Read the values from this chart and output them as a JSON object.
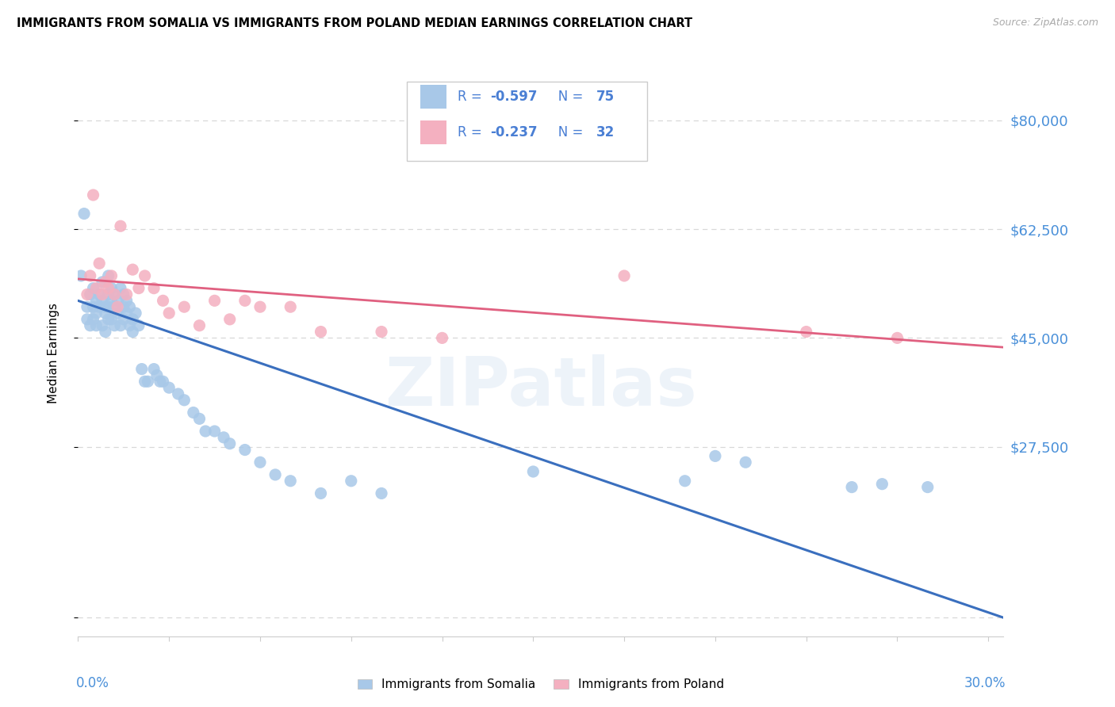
{
  "title": "IMMIGRANTS FROM SOMALIA VS IMMIGRANTS FROM POLAND MEDIAN EARNINGS CORRELATION CHART",
  "source": "Source: ZipAtlas.com",
  "ylabel": "Median Earnings",
  "y_ticks": [
    0,
    27500,
    45000,
    62500,
    80000
  ],
  "y_tick_labels": [
    "",
    "$27,500",
    "$45,000",
    "$62,500",
    "$80,000"
  ],
  "xlim": [
    0.0,
    0.305
  ],
  "ylim": [
    -3000,
    88000
  ],
  "somalia_color": "#a8c8e8",
  "poland_color": "#f4b0c0",
  "somalia_R": "-0.597",
  "somalia_N": "75",
  "poland_R": "-0.237",
  "poland_N": "32",
  "legend_text_color": "#4a7fd4",
  "watermark": "ZIPatlas",
  "somalia_scatter_x": [
    0.001,
    0.002,
    0.003,
    0.003,
    0.004,
    0.004,
    0.005,
    0.005,
    0.005,
    0.006,
    0.006,
    0.006,
    0.007,
    0.007,
    0.008,
    0.008,
    0.008,
    0.009,
    0.009,
    0.009,
    0.01,
    0.01,
    0.01,
    0.01,
    0.011,
    0.011,
    0.011,
    0.012,
    0.012,
    0.012,
    0.013,
    0.013,
    0.014,
    0.014,
    0.015,
    0.015,
    0.015,
    0.016,
    0.016,
    0.017,
    0.017,
    0.018,
    0.018,
    0.019,
    0.02,
    0.021,
    0.022,
    0.023,
    0.025,
    0.026,
    0.027,
    0.028,
    0.03,
    0.033,
    0.035,
    0.038,
    0.04,
    0.042,
    0.045,
    0.048,
    0.05,
    0.055,
    0.06,
    0.065,
    0.07,
    0.08,
    0.09,
    0.1,
    0.15,
    0.2,
    0.21,
    0.22,
    0.255,
    0.265,
    0.28
  ],
  "somalia_scatter_y": [
    55000,
    65000,
    50000,
    48000,
    52000,
    47000,
    53000,
    50000,
    48000,
    51000,
    49000,
    47000,
    52000,
    50000,
    54000,
    51000,
    47000,
    50000,
    49000,
    46000,
    55000,
    52000,
    50000,
    48000,
    53000,
    51000,
    48000,
    52000,
    50000,
    47000,
    51000,
    49000,
    53000,
    47000,
    52000,
    50000,
    48000,
    51000,
    49000,
    50000,
    47000,
    48000,
    46000,
    49000,
    47000,
    40000,
    38000,
    38000,
    40000,
    39000,
    38000,
    38000,
    37000,
    36000,
    35000,
    33000,
    32000,
    30000,
    30000,
    29000,
    28000,
    27000,
    25000,
    23000,
    22000,
    20000,
    22000,
    20000,
    23500,
    22000,
    26000,
    25000,
    21000,
    21500,
    21000
  ],
  "poland_scatter_x": [
    0.003,
    0.004,
    0.005,
    0.006,
    0.007,
    0.008,
    0.009,
    0.01,
    0.011,
    0.012,
    0.013,
    0.014,
    0.016,
    0.018,
    0.02,
    0.022,
    0.025,
    0.028,
    0.03,
    0.035,
    0.04,
    0.045,
    0.05,
    0.055,
    0.06,
    0.07,
    0.08,
    0.1,
    0.12,
    0.18,
    0.24,
    0.27
  ],
  "poland_scatter_y": [
    52000,
    55000,
    68000,
    53000,
    57000,
    52000,
    54000,
    53000,
    55000,
    52000,
    50000,
    63000,
    52000,
    56000,
    53000,
    55000,
    53000,
    51000,
    49000,
    50000,
    47000,
    51000,
    48000,
    51000,
    50000,
    50000,
    46000,
    46000,
    45000,
    55000,
    46000,
    45000
  ],
  "somalia_trend_x0": 0.0,
  "somalia_trend_x1": 0.305,
  "somalia_trend_y0": 51000,
  "somalia_trend_y1": 0,
  "poland_trend_x0": 0.0,
  "poland_trend_x1": 0.305,
  "poland_trend_y0": 54500,
  "poland_trend_y1": 43500,
  "trend_color_somalia": "#3a6fbe",
  "trend_color_poland": "#e06080",
  "grid_color": "#d8d8d8",
  "axis_color": "#cccccc",
  "right_label_color": "#4a90d9",
  "xlabel_color": "#4a90d9"
}
